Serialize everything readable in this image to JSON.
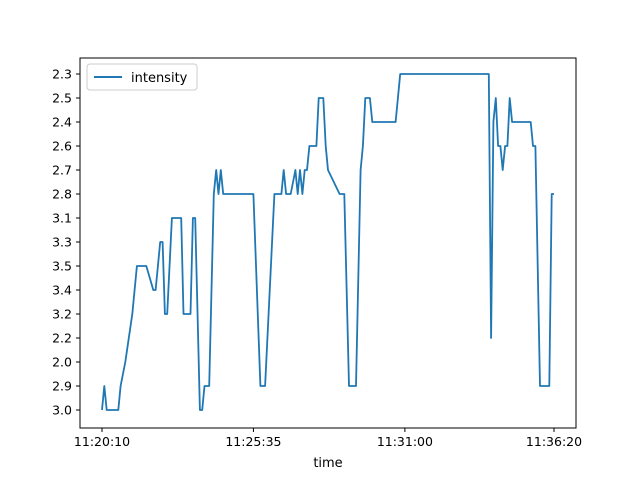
{
  "chart_data": {
    "type": "line",
    "title": "",
    "xlabel": "time",
    "ylabel": "",
    "x_tick_labels": [
      "11:20:10",
      "11:25:35",
      "11:31:00",
      "11:36:20"
    ],
    "y_categories": [
      "3.0",
      "2.9",
      "2.0",
      "2.2",
      "3.2",
      "3.4",
      "3.5",
      "3.3",
      "3.1",
      "2.8",
      "2.7",
      "2.6",
      "2.4",
      "2.5",
      "2.3"
    ],
    "grid": false,
    "legend_position": "top-left",
    "line_color": "#1f77b4",
    "series": [
      {
        "name": "intensity",
        "x": [
          "11:20:10",
          "11:20:15",
          "11:20:20",
          "11:20:45",
          "11:20:50",
          "11:21:00",
          "11:21:15",
          "11:21:25",
          "11:21:45",
          "11:22:00",
          "11:22:05",
          "11:22:10",
          "11:22:15",
          "11:22:20",
          "11:22:25",
          "11:22:30",
          "11:22:40",
          "11:22:45",
          "11:23:00",
          "11:23:05",
          "11:23:10",
          "11:23:20",
          "11:23:25",
          "11:23:30",
          "11:23:40",
          "11:23:45",
          "11:23:50",
          "11:23:55",
          "11:24:00",
          "11:24:10",
          "11:24:15",
          "11:24:20",
          "11:24:25",
          "11:24:30",
          "11:24:40",
          "11:24:45",
          "11:24:50",
          "11:25:00",
          "11:25:15",
          "11:25:20",
          "11:25:35",
          "11:25:50",
          "11:26:00",
          "11:26:20",
          "11:26:25",
          "11:26:30",
          "11:26:35",
          "11:26:40",
          "11:26:45",
          "11:26:55",
          "11:27:05",
          "11:27:10",
          "11:27:15",
          "11:27:20",
          "11:27:25",
          "11:27:30",
          "11:27:35",
          "11:27:40",
          "11:27:45",
          "11:27:50",
          "11:27:55",
          "11:28:00",
          "11:28:05",
          "11:28:10",
          "11:28:15",
          "11:28:40",
          "11:28:50",
          "11:29:00",
          "11:29:05",
          "11:29:15",
          "11:29:25",
          "11:29:30",
          "11:29:35",
          "11:29:45",
          "11:29:50",
          "11:29:55",
          "11:30:00",
          "11:30:10",
          "11:30:15",
          "11:30:20",
          "11:30:25",
          "11:30:30",
          "11:30:40",
          "11:30:50",
          "11:31:00",
          "11:31:10",
          "11:31:20",
          "11:31:30",
          "11:31:45",
          "11:32:00",
          "11:32:30",
          "11:33:00",
          "11:33:30",
          "11:34:00",
          "11:34:05",
          "11:34:10",
          "11:34:15",
          "11:34:20",
          "11:34:25",
          "11:34:30",
          "11:34:35",
          "11:34:40",
          "11:34:45",
          "11:34:50",
          "11:35:00",
          "11:35:10",
          "11:35:20",
          "11:35:30",
          "11:35:35",
          "11:35:40",
          "11:35:50",
          "11:36:00",
          "11:36:05",
          "11:36:10",
          "11:36:15",
          "11:36:20"
        ],
        "y": [
          "3.0",
          "2.9",
          "3.0",
          "3.0",
          "2.9",
          "2.0",
          "3.2",
          "3.5",
          "3.5",
          "3.4",
          "3.4",
          "3.5",
          "3.3",
          "3.3",
          "3.2",
          "3.2",
          "3.1",
          "3.1",
          "3.1",
          "3.2",
          "3.2",
          "3.2",
          "3.1",
          "3.1",
          "3.0",
          "3.0",
          "2.9",
          "2.9",
          "2.9",
          "2.8",
          "2.7",
          "2.8",
          "2.7",
          "2.8",
          "2.8",
          "2.8",
          "2.8",
          "2.8",
          "2.8",
          "2.8",
          "2.8",
          "2.9",
          "2.9",
          "2.8",
          "2.8",
          "2.8",
          "2.8",
          "2.7",
          "2.8",
          "2.8",
          "2.7",
          "2.8",
          "2.7",
          "2.8",
          "2.7",
          "2.7",
          "2.6",
          "2.6",
          "2.6",
          "2.6",
          "2.5",
          "2.5",
          "2.5",
          "2.6",
          "2.7",
          "2.8",
          "2.8",
          "2.9",
          "2.9",
          "2.9",
          "2.7",
          "2.6",
          "2.5",
          "2.5",
          "2.4",
          "2.4",
          "2.4",
          "2.4",
          "2.4",
          "2.4",
          "2.4",
          "2.4",
          "2.4",
          "2.3",
          "2.3",
          "2.3",
          "2.3",
          "2.3",
          "2.3",
          "2.3",
          "2.3",
          "2.3",
          "2.3",
          "2.3",
          "2.2",
          "2.4",
          "2.5",
          "2.6",
          "2.6",
          "2.7",
          "2.6",
          "2.6",
          "2.5",
          "2.4",
          "2.4",
          "2.4",
          "2.4",
          "2.4",
          "2.6",
          "2.6",
          "2.9",
          "2.9",
          "2.9",
          "2.9",
          "2.8",
          "2.8"
        ]
      }
    ]
  }
}
